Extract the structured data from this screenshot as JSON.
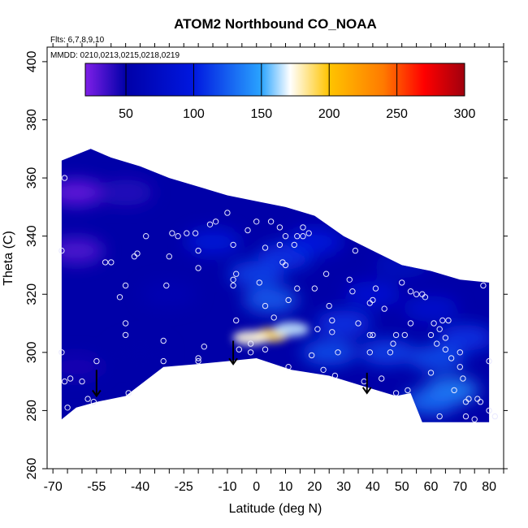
{
  "chart_data": {
    "type": "heatmap",
    "title": "ATOM2 Northbound CO_NOAA",
    "annotations": [
      "Flts: 6,7,8,9,10",
      "MMDD: 0210,0213,0215,0218,0219"
    ],
    "xlabel": "Latitude (deg N)",
    "ylabel": "Theta (C)",
    "xlim": [
      -72,
      85
    ],
    "ylim": [
      260,
      405
    ],
    "x_ticks": [
      -70,
      -55,
      -40,
      -25,
      -10,
      0,
      10,
      20,
      30,
      40,
      50,
      60,
      70,
      80
    ],
    "x_tick_labels": [
      "-70",
      "-55",
      "-40",
      "-25",
      "-10",
      "0",
      "10",
      "20",
      "30",
      "40",
      "50",
      "60",
      "70",
      "80"
    ],
    "y_ticks": [
      260,
      280,
      300,
      320,
      340,
      360,
      380,
      400
    ],
    "y_tick_labels": [
      "260",
      "280",
      "300",
      "320",
      "340",
      "360",
      "380",
      "400"
    ],
    "colorbar": {
      "range": [
        20,
        300
      ],
      "ticks": [
        50,
        100,
        150,
        200,
        250,
        300
      ],
      "tick_labels": [
        "50",
        "100",
        "150",
        "200",
        "250",
        "300"
      ],
      "placement": "top-inside"
    },
    "grid": false,
    "upper_boundary": [
      [
        -67,
        366
      ],
      [
        -57,
        370
      ],
      [
        -50,
        367
      ],
      [
        -40,
        364
      ],
      [
        -30,
        360
      ],
      [
        -20,
        357
      ],
      [
        -10,
        354
      ],
      [
        0,
        352
      ],
      [
        10,
        350
      ],
      [
        20,
        347
      ],
      [
        30,
        340
      ],
      [
        40,
        335
      ],
      [
        50,
        330
      ],
      [
        60,
        328
      ],
      [
        70,
        325
      ],
      [
        80,
        324
      ]
    ],
    "lower_boundary": [
      [
        -67,
        277
      ],
      [
        -62,
        281
      ],
      [
        -55,
        283
      ],
      [
        -45,
        285
      ],
      [
        -32,
        295
      ],
      [
        -20,
        296
      ],
      [
        -10,
        297
      ],
      [
        0,
        298
      ],
      [
        12,
        294
      ],
      [
        25,
        292
      ],
      [
        38,
        288
      ],
      [
        48,
        285
      ],
      [
        53,
        286
      ],
      [
        57,
        276
      ],
      [
        80,
        276
      ]
    ],
    "field_hotspots": [
      {
        "lat": 5,
        "theta": 306,
        "value": 190
      },
      {
        "lat": -2,
        "theta": 305,
        "value": 175
      },
      {
        "lat": 12,
        "theta": 308,
        "value": 165
      },
      {
        "lat": 5,
        "theta": 318,
        "value": 125
      },
      {
        "lat": 0,
        "theta": 327,
        "value": 115
      },
      {
        "lat": 10,
        "theta": 333,
        "value": 110
      },
      {
        "lat": -15,
        "theta": 338,
        "value": 95
      },
      {
        "lat": 20,
        "theta": 338,
        "value": 100
      },
      {
        "lat": 25,
        "theta": 300,
        "value": 120
      },
      {
        "lat": 45,
        "theta": 300,
        "value": 115
      },
      {
        "lat": 62,
        "theta": 298,
        "value": 120
      },
      {
        "lat": 67,
        "theta": 287,
        "value": 140
      },
      {
        "lat": 60,
        "theta": 283,
        "value": 130
      },
      {
        "lat": 72,
        "theta": 305,
        "value": 110
      },
      {
        "lat": 40,
        "theta": 320,
        "value": 90
      },
      {
        "lat": 60,
        "theta": 315,
        "value": 85
      },
      {
        "lat": -30,
        "theta": 320,
        "value": 60
      },
      {
        "lat": -40,
        "theta": 300,
        "value": 50
      },
      {
        "lat": -62,
        "theta": 335,
        "value": 30
      },
      {
        "lat": -62,
        "theta": 355,
        "value": 25
      },
      {
        "lat": -45,
        "theta": 355,
        "value": 40
      },
      {
        "lat": -62,
        "theta": 295,
        "value": 45
      },
      {
        "lat": 30,
        "theta": 310,
        "value": 110
      },
      {
        "lat": 50,
        "theta": 330,
        "value": 70
      }
    ],
    "field_background": 50,
    "sample_points": [
      [
        -66,
        360
      ],
      [
        -67,
        335
      ],
      [
        -67,
        300
      ],
      [
        -66,
        290
      ],
      [
        -64,
        291
      ],
      [
        -60,
        290
      ],
      [
        -65,
        281
      ],
      [
        -58,
        284
      ],
      [
        -56,
        283
      ],
      [
        -55,
        297
      ],
      [
        -52,
        331
      ],
      [
        -50,
        331
      ],
      [
        -47,
        319
      ],
      [
        -45,
        323
      ],
      [
        -45,
        310
      ],
      [
        -45,
        306
      ],
      [
        -44,
        286
      ],
      [
        -42,
        333
      ],
      [
        -41,
        334
      ],
      [
        -38,
        340
      ],
      [
        -32,
        304
      ],
      [
        -32,
        297
      ],
      [
        -31,
        323
      ],
      [
        -30,
        333
      ],
      [
        -29,
        341
      ],
      [
        -27,
        340
      ],
      [
        -24,
        341
      ],
      [
        -21,
        341
      ],
      [
        -20,
        335
      ],
      [
        -20,
        329
      ],
      [
        -20,
        298
      ],
      [
        -20,
        297
      ],
      [
        -18,
        302
      ],
      [
        -16,
        344
      ],
      [
        -14,
        345
      ],
      [
        -10,
        348
      ],
      [
        -8,
        337
      ],
      [
        -8,
        325
      ],
      [
        -8,
        323
      ],
      [
        -7,
        327
      ],
      [
        -7,
        311
      ],
      [
        -6,
        301
      ],
      [
        -3,
        342
      ],
      [
        -2,
        300
      ],
      [
        -2,
        303
      ],
      [
        0,
        345
      ],
      [
        1,
        324
      ],
      [
        3,
        336
      ],
      [
        3,
        316
      ],
      [
        3,
        301
      ],
      [
        5,
        345
      ],
      [
        6,
        312
      ],
      [
        8,
        343
      ],
      [
        8,
        337
      ],
      [
        9,
        331
      ],
      [
        10,
        340
      ],
      [
        10,
        330
      ],
      [
        11,
        318
      ],
      [
        11,
        295
      ],
      [
        13,
        337
      ],
      [
        14,
        322
      ],
      [
        14,
        340
      ],
      [
        16,
        343
      ],
      [
        16,
        340
      ],
      [
        18,
        341
      ],
      [
        19,
        299
      ],
      [
        20,
        322
      ],
      [
        21,
        308
      ],
      [
        23,
        294
      ],
      [
        24,
        327
      ],
      [
        25,
        316
      ],
      [
        26,
        311
      ],
      [
        26,
        307
      ],
      [
        27,
        292
      ],
      [
        28,
        300
      ],
      [
        32,
        325
      ],
      [
        33,
        321
      ],
      [
        34,
        335
      ],
      [
        35,
        310
      ],
      [
        37,
        290
      ],
      [
        39,
        317
      ],
      [
        39,
        300
      ],
      [
        39,
        306
      ],
      [
        40,
        306
      ],
      [
        40,
        318
      ],
      [
        41,
        322
      ],
      [
        43,
        291
      ],
      [
        44,
        315
      ],
      [
        46,
        300
      ],
      [
        47,
        303
      ],
      [
        48,
        306
      ],
      [
        48,
        286
      ],
      [
        50,
        324
      ],
      [
        51,
        306
      ],
      [
        52,
        287
      ],
      [
        53,
        321
      ],
      [
        53,
        310
      ],
      [
        55,
        320
      ],
      [
        57,
        320
      ],
      [
        58,
        319
      ],
      [
        60,
        306
      ],
      [
        60,
        293
      ],
      [
        61,
        310
      ],
      [
        62,
        303
      ],
      [
        63,
        278
      ],
      [
        63,
        308
      ],
      [
        64,
        311
      ],
      [
        65,
        305
      ],
      [
        65,
        301
      ],
      [
        66,
        311
      ],
      [
        67,
        298
      ],
      [
        68,
        287
      ],
      [
        70,
        300
      ],
      [
        70,
        295
      ],
      [
        71,
        291
      ],
      [
        72,
        283
      ],
      [
        72,
        278
      ],
      [
        73,
        284
      ],
      [
        75,
        277
      ],
      [
        76,
        284
      ],
      [
        77,
        283
      ],
      [
        78,
        323
      ],
      [
        80,
        297
      ],
      [
        80,
        280
      ],
      [
        82,
        278
      ]
    ],
    "arrows": [
      {
        "lat": -55,
        "theta_top": 294,
        "theta_bottom": 285
      },
      {
        "lat": -8,
        "theta_top": 304,
        "theta_bottom": 296
      },
      {
        "lat": 38,
        "theta_top": 293,
        "theta_bottom": 286
      }
    ]
  }
}
